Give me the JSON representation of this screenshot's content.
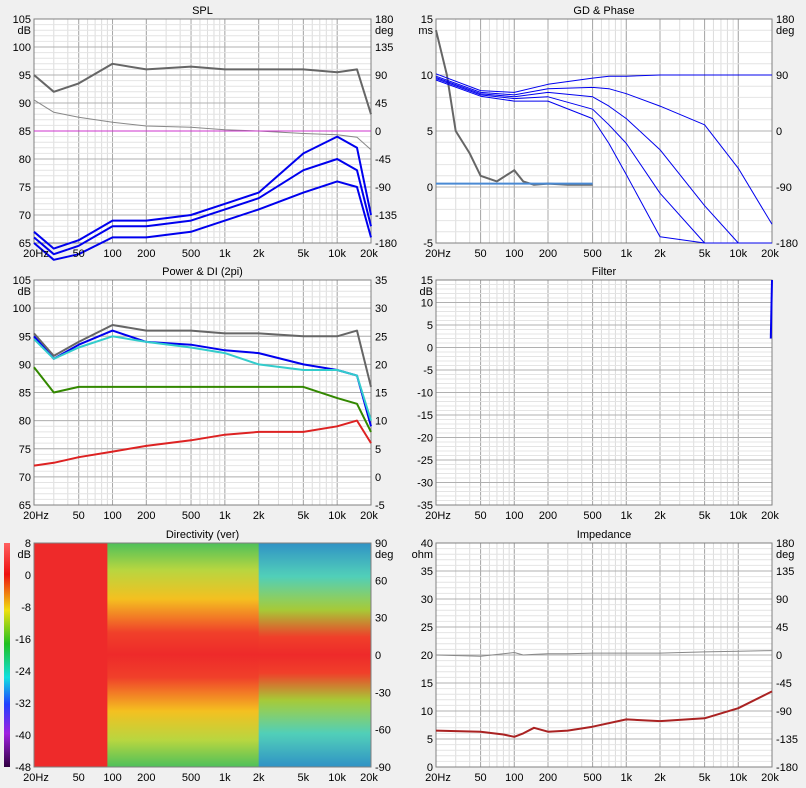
{
  "chart_data": [
    {
      "type": "line",
      "title": "SPL",
      "xlabel": "",
      "ylabel": "dB",
      "y2label": "deg",
      "xscale": "log",
      "xlim": [
        20,
        20000
      ],
      "x_ticks": [
        "20Hz",
        "50",
        "100",
        "200",
        "500",
        "1k",
        "2k",
        "5k",
        "10k",
        "20k"
      ],
      "ylim": [
        65,
        105
      ],
      "y_ticks": [
        "105",
        "100",
        "95",
        "90",
        "85",
        "80",
        "75",
        "70",
        "65"
      ],
      "y2lim": [
        -180,
        180
      ],
      "y2_ticks": [
        "180",
        "135",
        "90",
        "45",
        "0",
        "-45",
        "-90",
        "-135",
        "-180"
      ],
      "x": [
        20,
        30,
        50,
        100,
        200,
        500,
        1000,
        2000,
        5000,
        10000,
        15000,
        20000
      ],
      "series": [
        {
          "color": "#666666",
          "values": [
            95,
            92,
            93.5,
            97,
            96,
            96.5,
            96,
            96,
            96,
            95.5,
            96,
            88
          ]
        },
        {
          "color": "#888888",
          "axis": "right",
          "values": [
            50,
            30,
            22,
            14,
            8,
            6,
            2,
            0,
            -4,
            -6,
            -10,
            -30
          ]
        },
        {
          "color": "#cc33cc",
          "values": [
            85,
            85,
            85,
            85,
            85,
            85,
            85,
            85,
            85,
            85,
            85,
            85
          ]
        },
        {
          "color": "#0000ee",
          "values": [
            67,
            64,
            65.5,
            69,
            69,
            70,
            72,
            74,
            81,
            84,
            82,
            70
          ]
        },
        {
          "color": "#0000ee",
          "values": [
            66,
            63,
            64.5,
            68,
            68,
            69,
            71,
            73,
            78,
            80,
            78,
            68
          ]
        },
        {
          "color": "#0000ee",
          "values": [
            65,
            62,
            63,
            66,
            66,
            67,
            69,
            71,
            74,
            76,
            75,
            66
          ]
        }
      ]
    },
    {
      "type": "line",
      "title": "GD & Phase",
      "xlabel": "",
      "ylabel": "ms",
      "y2label": "deg",
      "xscale": "log",
      "xlim": [
        20,
        20000
      ],
      "x_ticks": [
        "20Hz",
        "50",
        "100",
        "200",
        "500",
        "1k",
        "2k",
        "5k",
        "10k",
        "20k"
      ],
      "ylim": [
        -5,
        15
      ],
      "y_ticks": [
        "15",
        "10",
        "5",
        "0",
        "-5"
      ],
      "y2lim": [
        -180,
        180
      ],
      "y2_ticks": [
        "180",
        "90",
        "0",
        "-90",
        "-180"
      ],
      "x": [
        20,
        25,
        30,
        40,
        50,
        70,
        100,
        120,
        150,
        200,
        300,
        500
      ],
      "series": [
        {
          "color": "#666666",
          "values": [
            14,
            10,
            5,
            3,
            1,
            0.5,
            1.5,
            0.5,
            0.2,
            0.3,
            0.2,
            0.2
          ]
        },
        {
          "color": "#4a8ad4",
          "values": [
            0.3,
            0.3,
            0.3,
            0.3,
            0.3,
            0.3,
            0.3,
            0.3,
            0.3,
            0.3,
            0.3,
            0.3
          ]
        }
      ],
      "phase_x": [
        20,
        50,
        100,
        200,
        500,
        700,
        1000,
        2000,
        5000,
        10000,
        20000
      ],
      "phase_series": [
        {
          "color": "#0000ee",
          "values": [
            92,
            65,
            62,
            75,
            85,
            88,
            88,
            90,
            90,
            90,
            90
          ]
        },
        {
          "color": "#0000ee",
          "values": [
            88,
            62,
            58,
            68,
            70,
            68,
            60,
            40,
            10,
            -60,
            -150
          ]
        },
        {
          "color": "#0000ee",
          "values": [
            86,
            60,
            55,
            62,
            55,
            40,
            20,
            -30,
            -120,
            -180,
            -180
          ]
        },
        {
          "color": "#0000ee",
          "values": [
            84,
            58,
            52,
            55,
            35,
            10,
            -20,
            -100,
            -180,
            -180,
            -180
          ]
        },
        {
          "color": "#0000ee",
          "values": [
            82,
            56,
            48,
            48,
            20,
            -20,
            -70,
            -170,
            -180,
            -180,
            -180
          ]
        }
      ]
    },
    {
      "type": "line",
      "title": "Power & DI (2pi)",
      "xlabel": "",
      "ylabel": "dB",
      "xscale": "log",
      "xlim": [
        20,
        20000
      ],
      "x_ticks": [
        "20Hz",
        "50",
        "100",
        "200",
        "500",
        "1k",
        "2k",
        "5k",
        "10k",
        "20k"
      ],
      "ylim": [
        65,
        105
      ],
      "y_ticks": [
        "105",
        "100",
        "95",
        "90",
        "85",
        "80",
        "75",
        "70",
        "65"
      ],
      "y2lim": [
        -5,
        35
      ],
      "y2_ticks": [
        "35",
        "30",
        "25",
        "20",
        "15",
        "10",
        "5",
        "0",
        "-5"
      ],
      "x": [
        20,
        30,
        50,
        100,
        200,
        500,
        1000,
        2000,
        5000,
        10000,
        15000,
        20000
      ],
      "series": [
        {
          "color": "#666666",
          "values": [
            95.5,
            91.5,
            94,
            97,
            96,
            96,
            95.5,
            95.5,
            95,
            95,
            96,
            86
          ]
        },
        {
          "color": "#0000ee",
          "values": [
            95,
            91,
            93.5,
            96,
            94,
            93.5,
            92.5,
            92,
            90,
            89,
            88,
            79
          ]
        },
        {
          "color": "#33cccc",
          "values": [
            94.5,
            91,
            93,
            95,
            94,
            93,
            92,
            90,
            89,
            89,
            88,
            80
          ]
        },
        {
          "color": "#338800",
          "values": [
            89.5,
            85,
            86,
            86,
            86,
            86,
            86,
            86,
            86,
            84,
            83,
            78
          ]
        },
        {
          "color": "#dd2222",
          "values": [
            72,
            72.5,
            73.5,
            74.5,
            75.5,
            76.5,
            77.5,
            78,
            78,
            79,
            80,
            76
          ]
        }
      ]
    },
    {
      "type": "line",
      "title": "Filter",
      "xlabel": "",
      "ylabel": "dB",
      "xscale": "log",
      "xlim": [
        20,
        20000
      ],
      "x_ticks": [
        "20Hz",
        "50",
        "100",
        "200",
        "500",
        "1k",
        "2k",
        "5k",
        "10k",
        "20k"
      ],
      "ylim": [
        -35,
        15
      ],
      "y_ticks": [
        "15",
        "10",
        "5",
        "0",
        "-5",
        "-10",
        "-15",
        "-20",
        "-25",
        "-30",
        "-35"
      ],
      "x": [
        19500,
        20000
      ],
      "series": [
        {
          "color": "#0000ee",
          "values": [
            2,
            15
          ]
        }
      ]
    },
    {
      "type": "heatmap",
      "title": "Directivity (ver)",
      "xlabel": "",
      "ylabel": "dB",
      "y2label": "deg",
      "xscale": "log",
      "xlim": [
        20,
        20000
      ],
      "x_ticks": [
        "20Hz",
        "50",
        "100",
        "200",
        "500",
        "1k",
        "2k",
        "5k",
        "10k",
        "20k"
      ],
      "y2lim": [
        -90,
        90
      ],
      "y2_ticks": [
        "90",
        "60",
        "30",
        "0",
        "-30",
        "-60",
        "-90"
      ],
      "colorbar_ticks": [
        "8",
        "0",
        "-8",
        "-16",
        "-24",
        "-32",
        "-40",
        "-48"
      ],
      "colorbar_range": [
        -48,
        8
      ]
    },
    {
      "type": "line",
      "title": "Impedance",
      "xlabel": "",
      "ylabel": "ohm",
      "y2label": "deg",
      "xscale": "log",
      "xlim": [
        20,
        20000
      ],
      "x_ticks": [
        "20Hz",
        "50",
        "100",
        "200",
        "500",
        "1k",
        "2k",
        "5k",
        "10k",
        "20k"
      ],
      "ylim": [
        0,
        40
      ],
      "y_ticks": [
        "40",
        "35",
        "30",
        "25",
        "20",
        "15",
        "10",
        "5",
        "0"
      ],
      "y2lim": [
        -180,
        180
      ],
      "y2_ticks": [
        "180",
        "135",
        "90",
        "45",
        "0",
        "-45",
        "-90",
        "-135",
        "-180"
      ],
      "x": [
        20,
        50,
        80,
        100,
        120,
        150,
        200,
        300,
        500,
        1000,
        2000,
        5000,
        10000,
        20000
      ],
      "series": [
        {
          "color": "#aa2222",
          "values": [
            6.5,
            6.3,
            5.8,
            5.4,
            6,
            7,
            6.3,
            6.5,
            7.2,
            8.5,
            8.2,
            8.7,
            10.5,
            13.5
          ]
        },
        {
          "color": "#888888",
          "axis": "right",
          "values": [
            0,
            -2,
            2,
            4,
            0,
            1,
            2,
            2,
            3,
            3,
            3,
            5,
            6,
            7
          ]
        }
      ]
    }
  ]
}
